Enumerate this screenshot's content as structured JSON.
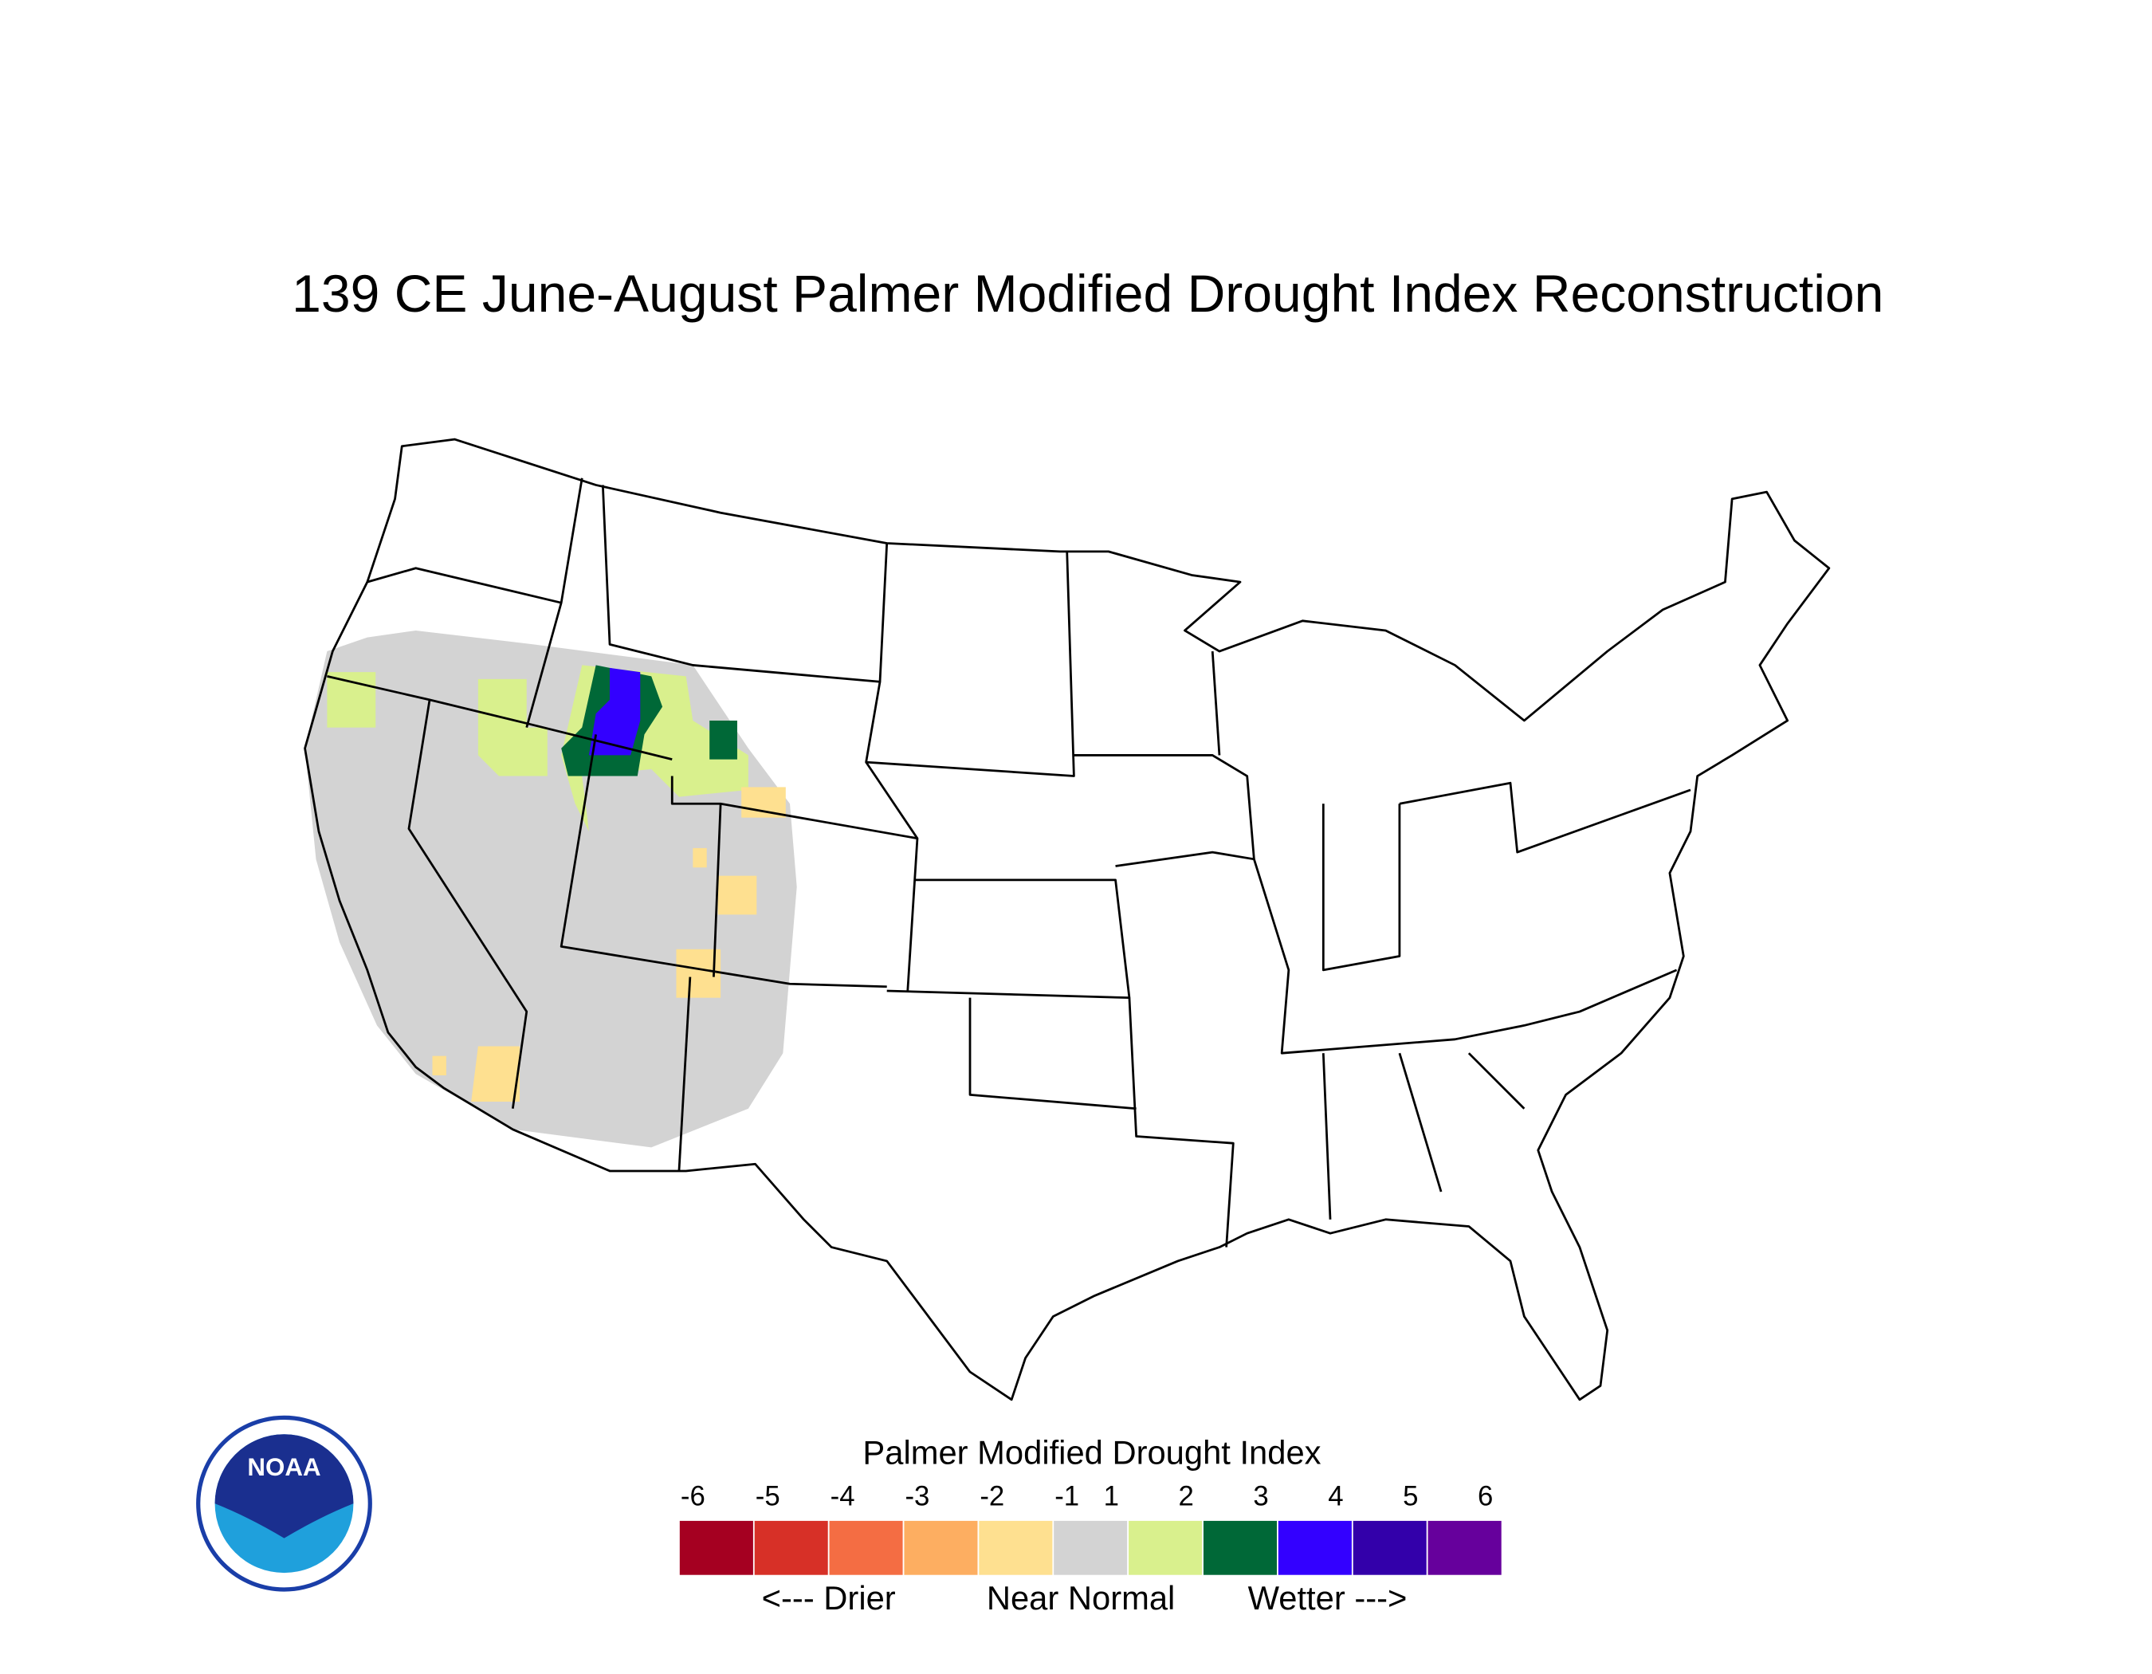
{
  "title": "139 CE  June-August  Palmer Modified Drought Index Reconstruction",
  "logo_text": "NOAA",
  "legend": {
    "title": "Palmer Modified Drought Index",
    "ticks": [
      -6,
      -5,
      -4,
      -3,
      -2,
      -1,
      1,
      2,
      3,
      4,
      5,
      6
    ],
    "colors": [
      "#a50021",
      "#d73027",
      "#f46d43",
      "#fdae61",
      "#fee090",
      "#d3d3d3",
      "#d9f08d",
      "#006837",
      "#3300ff",
      "#3300aa",
      "#66009c"
    ],
    "labels": [
      "<--- Drier",
      "Near Normal",
      "Wetter --->"
    ]
  }
}
